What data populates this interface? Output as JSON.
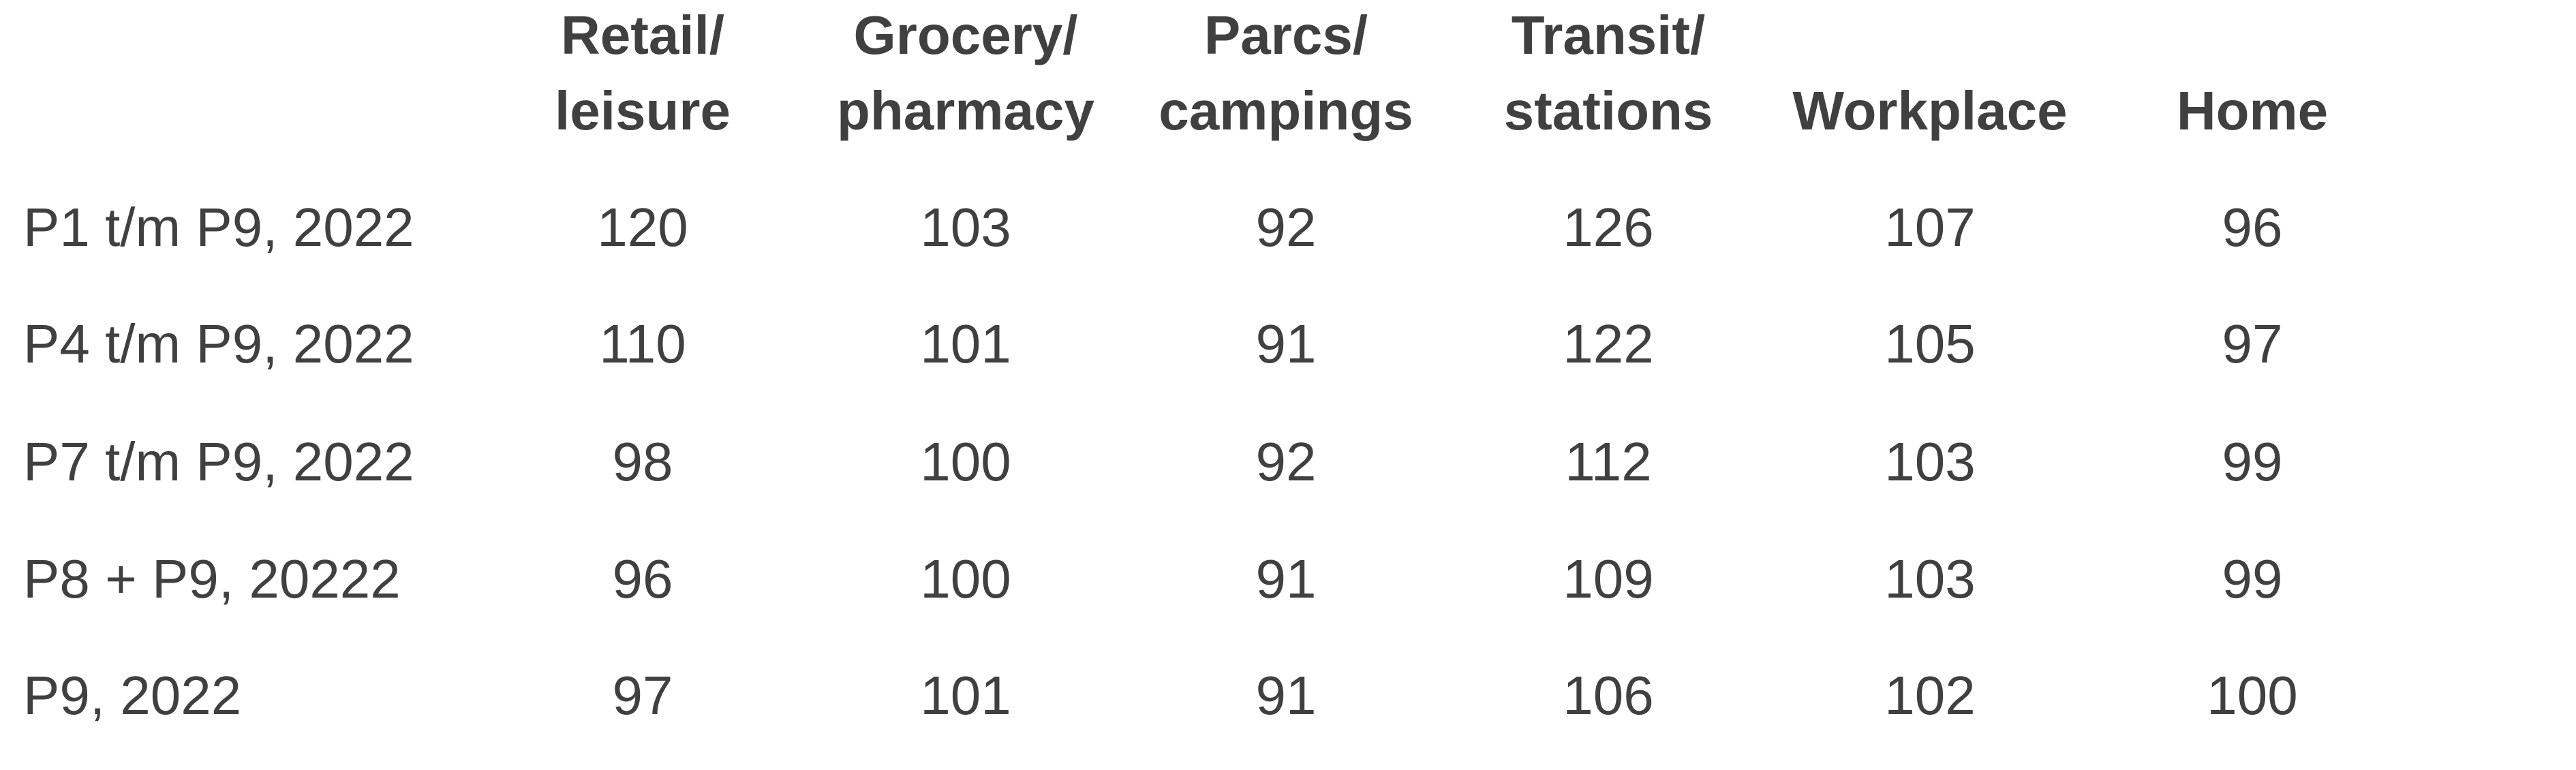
{
  "table": {
    "columns": [
      {
        "lines": [
          "Retail/",
          "leisure"
        ]
      },
      {
        "lines": [
          "Grocery/",
          "pharmacy"
        ]
      },
      {
        "lines": [
          "Parcs/",
          "campings"
        ]
      },
      {
        "lines": [
          "Transit/",
          "stations"
        ]
      },
      {
        "lines": [
          "Workplace"
        ]
      },
      {
        "lines": [
          "Home"
        ]
      }
    ],
    "rows": [
      {
        "label": "P1 t/m P9, 2022",
        "values": [
          120,
          103,
          92,
          126,
          107,
          96
        ]
      },
      {
        "label": "P4 t/m P9, 2022",
        "values": [
          110,
          101,
          91,
          122,
          105,
          97
        ]
      },
      {
        "label": "P7 t/m P9, 2022",
        "values": [
          98,
          100,
          92,
          112,
          103,
          99
        ]
      },
      {
        "label": "P8 + P9, 20222",
        "values": [
          96,
          100,
          91,
          109,
          103,
          99
        ]
      },
      {
        "label": "P9, 2022",
        "values": [
          97,
          101,
          91,
          106,
          102,
          100
        ]
      }
    ]
  }
}
